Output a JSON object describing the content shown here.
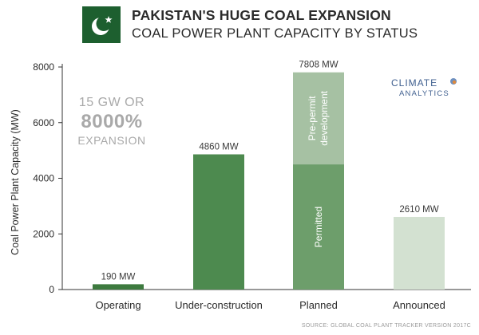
{
  "header": {
    "title": "PAKISTAN'S HUGE COAL EXPANSION",
    "subtitle": "COAL POWER PLANT CAPACITY BY STATUS",
    "flag_colors": {
      "green": "#1d5f2f",
      "white": "#ffffff"
    }
  },
  "annotation": {
    "line1": "15 GW OR",
    "line2": "8000%",
    "line3": "EXPANSION"
  },
  "logo": {
    "line1": "CLIMATE",
    "line2": "ANALYTICS",
    "color": "#3f5f8f"
  },
  "source": "SOURCE: GLOBAL COAL PLANT TRACKER VERSION 2017C",
  "chart_data": {
    "type": "bar",
    "stacked": true,
    "ylabel": "Coal Power Plant Capacity (MW)",
    "xlabel": "",
    "ylim": [
      0,
      8000
    ],
    "yticks": [
      0,
      2000,
      4000,
      6000,
      8000
    ],
    "grid": false,
    "categories": [
      "Operating",
      "Under-construction",
      "Planned",
      "Announced"
    ],
    "totals": [
      190,
      4860,
      7808,
      2610
    ],
    "total_labels": [
      "190 MW",
      "4860 MW",
      "7808 MW",
      "2610 MW"
    ],
    "series": [
      {
        "name": "",
        "values": [
          190,
          4860,
          4500,
          2610
        ],
        "colors": [
          "#3d7a3f",
          "#4d8a4f",
          "#6d9e6b",
          "#d3e1d1"
        ]
      },
      {
        "name": "",
        "values": [
          0,
          0,
          3308,
          0
        ],
        "colors": [
          "#3d7a3f",
          "#4d8a4f",
          "#a6c1a3",
          "#d3e1d1"
        ]
      }
    ],
    "segment_labels": [
      {
        "category": "Planned",
        "series": 0,
        "text": "Permitted"
      },
      {
        "category": "Planned",
        "series": 1,
        "text_lines": [
          "Pre-permit",
          "development"
        ]
      }
    ]
  }
}
